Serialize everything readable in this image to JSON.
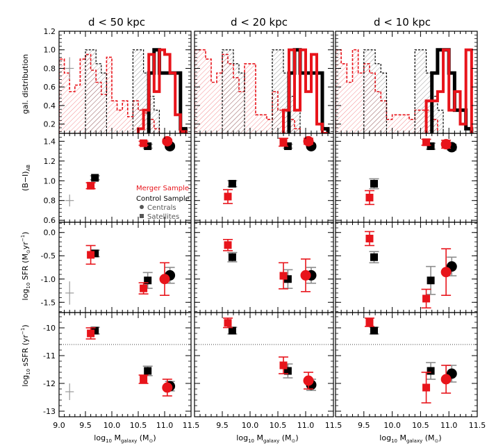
{
  "colors": {
    "merger": "#e8141b",
    "control": "#000000",
    "control_err": "#8c8c8c",
    "merger_fill": "#f2c4c8",
    "control_fill": "#bbbbbb"
  },
  "legend": {
    "merger": "Merger Sample",
    "control": "Control Sample",
    "centrals": "Centrals",
    "satellites": "Satellites"
  },
  "chart_data": {
    "type": "scatter",
    "columns": [
      {
        "title": "d < 50 kpc"
      },
      {
        "title": "d < 20 kpc"
      },
      {
        "title": "d < 10 kpc"
      }
    ],
    "xlabel": "log10 Mgalaxy (M⊙)",
    "xlim": [
      9.0,
      11.5
    ],
    "xticks": [
      "9.0",
      "9.5",
      "10.0",
      "10.5",
      "11.0",
      "11.5"
    ],
    "rows": [
      {
        "id": "dist",
        "ylabel": "gal. distribution",
        "ylim": [
          0.1,
          1.2
        ],
        "yticks": [
          "0.2",
          "0.4",
          "0.6",
          "0.8",
          "1.0",
          "1.2"
        ],
        "panels": [
          {
            "bins": [
              9.0,
              9.1,
              9.2,
              9.3,
              9.4,
              9.5,
              9.6,
              9.7,
              9.8,
              9.9,
              10.0,
              10.1,
              10.2,
              10.3,
              10.4,
              10.5,
              10.6,
              10.7,
              10.8,
              10.9,
              11.0,
              11.1,
              11.2,
              11.3,
              11.4
            ],
            "merger_sat": [
              0.9,
              0.75,
              0.55,
              0.62,
              0.9,
              0.95,
              0.78,
              0.65,
              0.52,
              0.92,
              0.45,
              0.35,
              0.45,
              0.28,
              0.45,
              0.35,
              0.32,
              0.25,
              0.15,
              0.0,
              0.0,
              0.0,
              0.0,
              0.0
            ],
            "control_sat": [
              0,
              0,
              0,
              0,
              0,
              1.0,
              1.0,
              0.85,
              0.75,
              0,
              0,
              0,
              0,
              0,
              1.0,
              1.0,
              0.75,
              0.5,
              0.35,
              0,
              0,
              0,
              0,
              0
            ],
            "control_cen": [
              0,
              0,
              0,
              0,
              0,
              0,
              0,
              0,
              0,
              0,
              0,
              0,
              0,
              0,
              0,
              0,
              0,
              0.75,
              1.0,
              0.75,
              0.75,
              0.75,
              0.75,
              0.15
            ],
            "merger_cen": [
              0,
              0,
              0,
              0,
              0,
              0,
              0,
              0,
              0,
              0,
              0,
              0,
              0,
              0,
              0,
              0.15,
              0.35,
              0.95,
              0.55,
              1.0,
              0.95,
              0.75,
              0.3,
              0.12
            ]
          },
          {
            "bins": [
              9.0,
              9.1,
              9.2,
              9.3,
              9.4,
              9.5,
              9.6,
              9.7,
              9.8,
              9.9,
              10.0,
              10.1,
              10.2,
              10.3,
              10.4,
              10.5,
              10.6,
              10.7,
              10.8,
              10.9,
              11.0,
              11.1,
              11.2,
              11.3,
              11.4
            ],
            "merger_sat": [
              1.0,
              1.0,
              0.9,
              0.65,
              0.75,
              0.95,
              0.85,
              0.7,
              0.55,
              0.85,
              0.85,
              0.3,
              0.3,
              0.25,
              0.55,
              0.35,
              0.35,
              0.25,
              0.15,
              0.0,
              0.0,
              0.0,
              0.0,
              0.0
            ],
            "control_sat": [
              0,
              0,
              0,
              0,
              0,
              1.0,
              1.0,
              0.85,
              0.75,
              0,
              0,
              0,
              0,
              0,
              1.0,
              1.0,
              0.75,
              0.5,
              0.35,
              0,
              0,
              0,
              0,
              0
            ],
            "control_cen": [
              0,
              0,
              0,
              0,
              0,
              0,
              0,
              0,
              0,
              0,
              0,
              0,
              0,
              0,
              0,
              0,
              0,
              0.75,
              1.0,
              0.75,
              0.75,
              0.75,
              0.75,
              0.15
            ],
            "merger_cen": [
              0,
              0,
              0,
              0,
              0,
              0,
              0,
              0,
              0,
              0,
              0,
              0,
              0,
              0,
              0,
              0,
              0.35,
              1.0,
              0.35,
              1.0,
              0.55,
              0.95,
              0.2,
              0.1
            ]
          },
          {
            "bins": [
              9.0,
              9.1,
              9.2,
              9.3,
              9.4,
              9.5,
              9.6,
              9.7,
              9.8,
              9.9,
              10.0,
              10.1,
              10.2,
              10.3,
              10.4,
              10.5,
              10.6,
              10.7,
              10.8,
              10.9,
              11.0,
              11.1,
              11.2,
              11.3,
              11.4
            ],
            "merger_sat": [
              1.0,
              0.85,
              0.65,
              1.0,
              0.75,
              0.85,
              0.75,
              0.55,
              0.45,
              0.25,
              0.3,
              0.3,
              0.3,
              0.25,
              0.35,
              0.35,
              0.35,
              0.25,
              0.0,
              0.0,
              0.0,
              0.0,
              0.0,
              0.0
            ],
            "control_sat": [
              0,
              0,
              0,
              0,
              0,
              1.0,
              1.0,
              0.85,
              0.75,
              0,
              0,
              0,
              0,
              0,
              1.0,
              1.0,
              0.75,
              0.5,
              0.35,
              0,
              0,
              0,
              0,
              0
            ],
            "control_cen": [
              0,
              0,
              0,
              0,
              0,
              0,
              0,
              0,
              0,
              0,
              0,
              0,
              0,
              0,
              0,
              0,
              0,
              0.75,
              1.0,
              1.0,
              0.75,
              0.35,
              0.35,
              0.15
            ],
            "merger_cen": [
              0,
              0,
              0,
              0,
              0,
              0,
              0,
              0,
              0,
              0,
              0,
              0,
              0,
              0,
              0,
              0,
              0.45,
              0.45,
              0.55,
              1.0,
              0.35,
              0.55,
              0.2,
              1.0
            ]
          }
        ],
        "typical_err": {
          "x": 9.2,
          "y": 0.8,
          "dx": 0.08,
          "dy": 0.12
        }
      },
      {
        "id": "color",
        "ylabel": "(B−I)AB",
        "ylim": [
          0.58,
          1.48
        ],
        "yticks": [
          "0.6",
          "0.8",
          "1.0",
          "1.2",
          "1.4"
        ],
        "panels": [
          {
            "merger": [
              {
                "x": 9.6,
                "y": 0.95,
                "e": 0.03,
                "shape": "square"
              },
              {
                "x": 10.6,
                "y": 1.38,
                "e": 0.02,
                "shape": "square"
              },
              {
                "x": 11.05,
                "y": 1.4,
                "e": 0.02,
                "shape": "circle"
              }
            ],
            "control": [
              {
                "x": 9.68,
                "y": 1.03,
                "e": 0.02,
                "shape": "square"
              },
              {
                "x": 10.68,
                "y": 1.35,
                "e": 0.02,
                "shape": "square"
              },
              {
                "x": 11.1,
                "y": 1.35,
                "e": 0.02,
                "shape": "circle"
              }
            ]
          },
          {
            "merger": [
              {
                "x": 9.6,
                "y": 0.84,
                "e": 0.07,
                "shape": "square"
              },
              {
                "x": 10.6,
                "y": 1.39,
                "e": 0.04,
                "shape": "square"
              },
              {
                "x": 11.05,
                "y": 1.4,
                "e": 0.03,
                "shape": "circle"
              }
            ],
            "control": [
              {
                "x": 9.68,
                "y": 0.97,
                "e": 0.03,
                "shape": "square"
              },
              {
                "x": 10.68,
                "y": 1.35,
                "e": 0.02,
                "shape": "square"
              },
              {
                "x": 11.1,
                "y": 1.35,
                "e": 0.02,
                "shape": "circle"
              }
            ]
          },
          {
            "merger": [
              {
                "x": 9.6,
                "y": 0.83,
                "e": 0.07,
                "shape": "square"
              },
              {
                "x": 10.6,
                "y": 1.39,
                "e": 0.03,
                "shape": "square"
              },
              {
                "x": 10.95,
                "y": 1.37,
                "e": 0.04,
                "shape": "circle"
              }
            ],
            "control": [
              {
                "x": 9.68,
                "y": 0.97,
                "e": 0.05,
                "shape": "square"
              },
              {
                "x": 10.68,
                "y": 1.35,
                "e": 0.03,
                "shape": "square"
              },
              {
                "x": 11.05,
                "y": 1.34,
                "e": 0.03,
                "shape": "circle"
              }
            ]
          }
        ],
        "typical_err": {
          "x": 9.2,
          "y": 0.8,
          "dx": 0.08,
          "dy": 0.06
        }
      },
      {
        "id": "sfr",
        "ylabel": "log10 SFR (M⊙yr−1)",
        "ylim": [
          -1.72,
          0.22
        ],
        "yticks": [
          "-1.5",
          "-1.0",
          "-0.5",
          "0.0"
        ],
        "panels": [
          {
            "merger": [
              {
                "x": 9.6,
                "y": -0.48,
                "e": 0.2,
                "shape": "square"
              },
              {
                "x": 10.6,
                "y": -1.2,
                "e": 0.12,
                "shape": "square"
              },
              {
                "x": 11.0,
                "y": -1.0,
                "e": 0.35,
                "shape": "circle"
              }
            ],
            "control": [
              {
                "x": 9.68,
                "y": -0.45,
                "e": 0.07,
                "shape": "square"
              },
              {
                "x": 10.68,
                "y": -1.03,
                "e": 0.17,
                "shape": "square"
              },
              {
                "x": 11.1,
                "y": -0.92,
                "e": 0.17,
                "shape": "circle"
              }
            ]
          },
          {
            "merger": [
              {
                "x": 9.6,
                "y": -0.27,
                "e": 0.12,
                "shape": "square"
              },
              {
                "x": 10.6,
                "y": -0.93,
                "e": 0.28,
                "shape": "square"
              },
              {
                "x": 11.0,
                "y": -0.92,
                "e": 0.35,
                "shape": "circle"
              }
            ],
            "control": [
              {
                "x": 9.68,
                "y": -0.53,
                "e": 0.1,
                "shape": "square"
              },
              {
                "x": 10.68,
                "y": -1.0,
                "e": 0.2,
                "shape": "square"
              },
              {
                "x": 11.1,
                "y": -0.92,
                "e": 0.17,
                "shape": "circle"
              }
            ]
          },
          {
            "merger": [
              {
                "x": 9.6,
                "y": -0.13,
                "e": 0.15,
                "shape": "square"
              },
              {
                "x": 10.6,
                "y": -1.42,
                "e": 0.2,
                "shape": "square"
              },
              {
                "x": 10.95,
                "y": -0.85,
                "e": 0.5,
                "shape": "circle"
              }
            ],
            "control": [
              {
                "x": 9.68,
                "y": -0.53,
                "e": 0.12,
                "shape": "square"
              },
              {
                "x": 10.68,
                "y": -1.03,
                "e": 0.3,
                "shape": "square"
              },
              {
                "x": 11.05,
                "y": -0.73,
                "e": 0.2,
                "shape": "circle"
              }
            ]
          }
        ],
        "typical_err": {
          "x": 9.2,
          "y": -1.3,
          "dx": 0.08,
          "dy": 0.25
        }
      },
      {
        "id": "ssfr",
        "ylabel": "log10 sSFR (yr−1)",
        "ylim": [
          -13.2,
          -9.45
        ],
        "yticks": [
          "-13",
          "-12",
          "-11",
          "-10"
        ],
        "hline": -10.6,
        "panels": [
          {
            "merger": [
              {
                "x": 9.6,
                "y": -10.2,
                "e": 0.2,
                "shape": "square"
              },
              {
                "x": 10.6,
                "y": -11.85,
                "e": 0.15,
                "shape": "square"
              },
              {
                "x": 11.05,
                "y": -12.15,
                "e": 0.3,
                "shape": "circle"
              }
            ],
            "control": [
              {
                "x": 9.68,
                "y": -10.1,
                "e": 0.12,
                "shape": "square"
              },
              {
                "x": 10.68,
                "y": -11.55,
                "e": 0.17,
                "shape": "square"
              },
              {
                "x": 11.1,
                "y": -12.1,
                "e": 0.17,
                "shape": "circle"
              }
            ]
          },
          {
            "merger": [
              {
                "x": 9.6,
                "y": -9.82,
                "e": 0.17,
                "shape": "square"
              },
              {
                "x": 10.6,
                "y": -11.35,
                "e": 0.3,
                "shape": "square"
              },
              {
                "x": 11.05,
                "y": -11.9,
                "e": 0.3,
                "shape": "circle"
              }
            ],
            "control": [
              {
                "x": 9.68,
                "y": -10.1,
                "e": 0.12,
                "shape": "square"
              },
              {
                "x": 10.68,
                "y": -11.55,
                "e": 0.25,
                "shape": "square"
              },
              {
                "x": 11.1,
                "y": -12.05,
                "e": 0.2,
                "shape": "circle"
              }
            ]
          },
          {
            "merger": [
              {
                "x": 9.6,
                "y": -9.8,
                "e": 0.15,
                "shape": "square"
              },
              {
                "x": 10.6,
                "y": -12.15,
                "e": 0.55,
                "shape": "square"
              },
              {
                "x": 10.95,
                "y": -11.85,
                "e": 0.5,
                "shape": "circle"
              }
            ],
            "control": [
              {
                "x": 9.68,
                "y": -10.1,
                "e": 0.12,
                "shape": "square"
              },
              {
                "x": 10.68,
                "y": -11.55,
                "e": 0.3,
                "shape": "square"
              },
              {
                "x": 11.05,
                "y": -11.65,
                "e": 0.3,
                "shape": "circle"
              }
            ]
          }
        ],
        "typical_err": {
          "x": 9.2,
          "y": -12.3,
          "dx": 0.08,
          "dy": 0.3
        }
      }
    ]
  }
}
